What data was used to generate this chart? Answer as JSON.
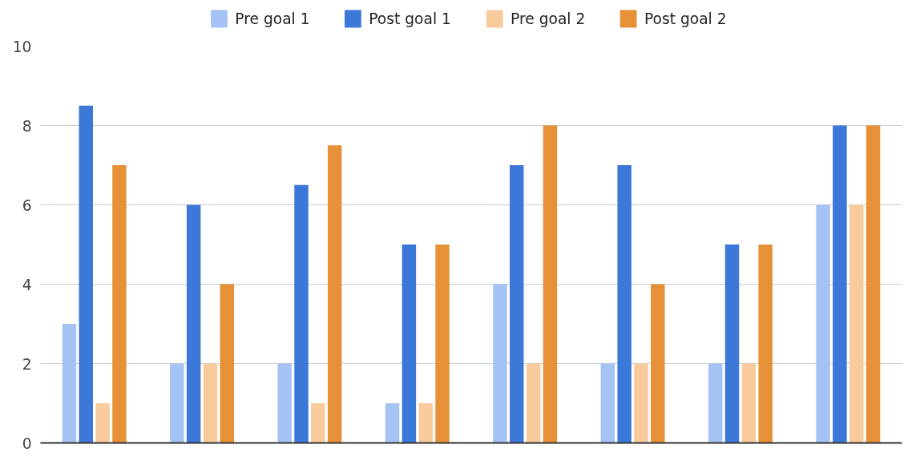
{
  "chart_data": {
    "type": "bar",
    "categories": [
      null,
      null,
      null,
      null,
      null,
      null,
      null,
      null
    ],
    "series": [
      {
        "name": "Pre goal 1",
        "color": "#a4c2f4",
        "values": [
          3,
          2,
          2,
          1,
          4,
          2,
          2,
          6
        ]
      },
      {
        "name": "Post goal 1",
        "color": "#3c78d8",
        "values": [
          8.5,
          6,
          6.5,
          5,
          7,
          7,
          5,
          8
        ]
      },
      {
        "name": "Pre goal 2",
        "color": "#f9cb9c",
        "values": [
          1,
          2,
          1,
          1,
          2,
          2,
          2,
          6
        ]
      },
      {
        "name": "Post goal 2",
        "color": "#e69138",
        "values": [
          7,
          4,
          7.5,
          5,
          8,
          4,
          5,
          8
        ]
      }
    ],
    "ylim": [
      0,
      10
    ],
    "yticks": [
      0,
      2,
      4,
      6,
      8,
      10
    ],
    "grid": "y",
    "legend": "top"
  }
}
